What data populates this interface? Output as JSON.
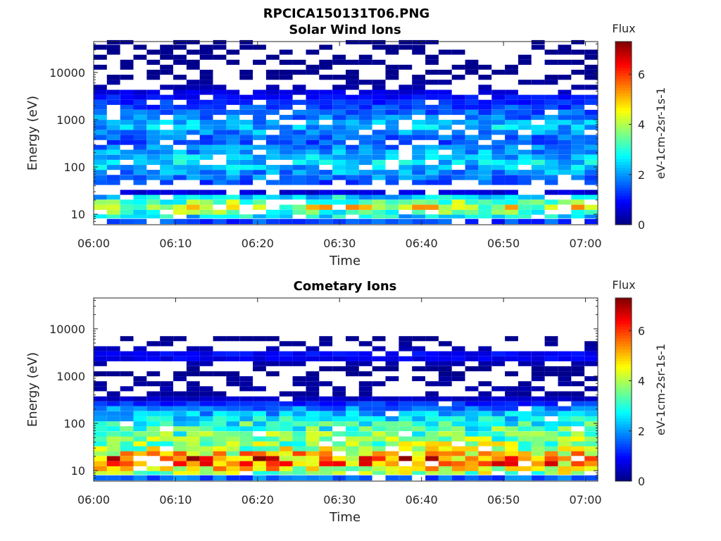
{
  "figure_title": "RPCICA150131T06.PNG",
  "chart_data": [
    {
      "type": "heatmap",
      "title": "Solar Wind Ions",
      "xlabel": "Time",
      "ylabel": "Energy (eV)",
      "x_ticks": [
        "06:00",
        "06:10",
        "06:20",
        "06:30",
        "06:40",
        "06:50",
        "07:00"
      ],
      "x_range": [
        "06:00",
        "07:00"
      ],
      "y_scale": "log",
      "y_ticks": [
        "10",
        "100",
        "1000",
        "10000"
      ],
      "ylim": [
        6,
        45000
      ],
      "colorbar": {
        "title": "Flux",
        "label": "eV-1cm-2sr-1s-1",
        "ticks": [
          "0",
          "2",
          "4",
          "6"
        ],
        "range": [
          0,
          7.3
        ],
        "colormap": "jet"
      },
      "profile": {
        "band_energy_ev": [
          7,
          9,
          11,
          14,
          18,
          23,
          29,
          37,
          47,
          60,
          77,
          98,
          125,
          160,
          205,
          260,
          330,
          420,
          540,
          690,
          880,
          1120,
          1430,
          1830,
          2330,
          2980,
          3800,
          4850,
          6200,
          7900,
          10100,
          12900,
          16400,
          21000,
          26800,
          34200,
          43600
        ],
        "typical_flux": [
          1.4,
          2.6,
          3.4,
          4.2,
          3.6,
          2.5,
          0.6,
          0,
          1.4,
          1.8,
          2.0,
          2.2,
          2.4,
          2.3,
          2.1,
          1.8,
          1.5,
          1.6,
          2.0,
          2.3,
          2.1,
          1.8,
          1.6,
          1.4,
          1.2,
          1.0,
          0.7,
          0.3,
          0.2,
          0.1,
          0.1,
          0.1,
          0.1,
          0.1,
          0.1,
          0.1,
          0.1
        ]
      }
    },
    {
      "type": "heatmap",
      "title": "Cometary Ions",
      "xlabel": "Time",
      "ylabel": "Energy (eV)",
      "x_ticks": [
        "06:00",
        "06:10",
        "06:20",
        "06:30",
        "06:40",
        "06:50",
        "07:00"
      ],
      "x_range": [
        "06:00",
        "07:00"
      ],
      "y_scale": "log",
      "y_ticks": [
        "10",
        "100",
        "1000",
        "10000"
      ],
      "ylim": [
        6,
        45000
      ],
      "colorbar": {
        "title": "Flux",
        "label": "eV-1cm-2sr-1s-1",
        "ticks": [
          "0",
          "2",
          "4",
          "6"
        ],
        "range": [
          0,
          7.3
        ],
        "colormap": "jet"
      },
      "profile": {
        "band_energy_ev": [
          7,
          9,
          11,
          14,
          18,
          23,
          29,
          37,
          47,
          60,
          77,
          98,
          125,
          160,
          205,
          260,
          330,
          420,
          540,
          690,
          880,
          1120,
          1430,
          1830,
          2330,
          2980,
          3800,
          4850,
          6200,
          7900,
          10100,
          12900,
          16400,
          21000,
          26800,
          34200,
          43600
        ],
        "typical_flux": [
          1.6,
          3.8,
          4.6,
          5.2,
          5.6,
          4.6,
          4.0,
          3.8,
          3.6,
          3.4,
          3.2,
          3.0,
          2.6,
          2.2,
          1.8,
          1.2,
          0.5,
          0.2,
          0.3,
          0.2,
          0.2,
          0.1,
          0.1,
          0.3,
          0.8,
          0.9,
          0.4,
          0.2,
          0.1,
          0,
          0,
          0,
          0,
          0,
          0,
          0,
          0
        ]
      }
    }
  ]
}
